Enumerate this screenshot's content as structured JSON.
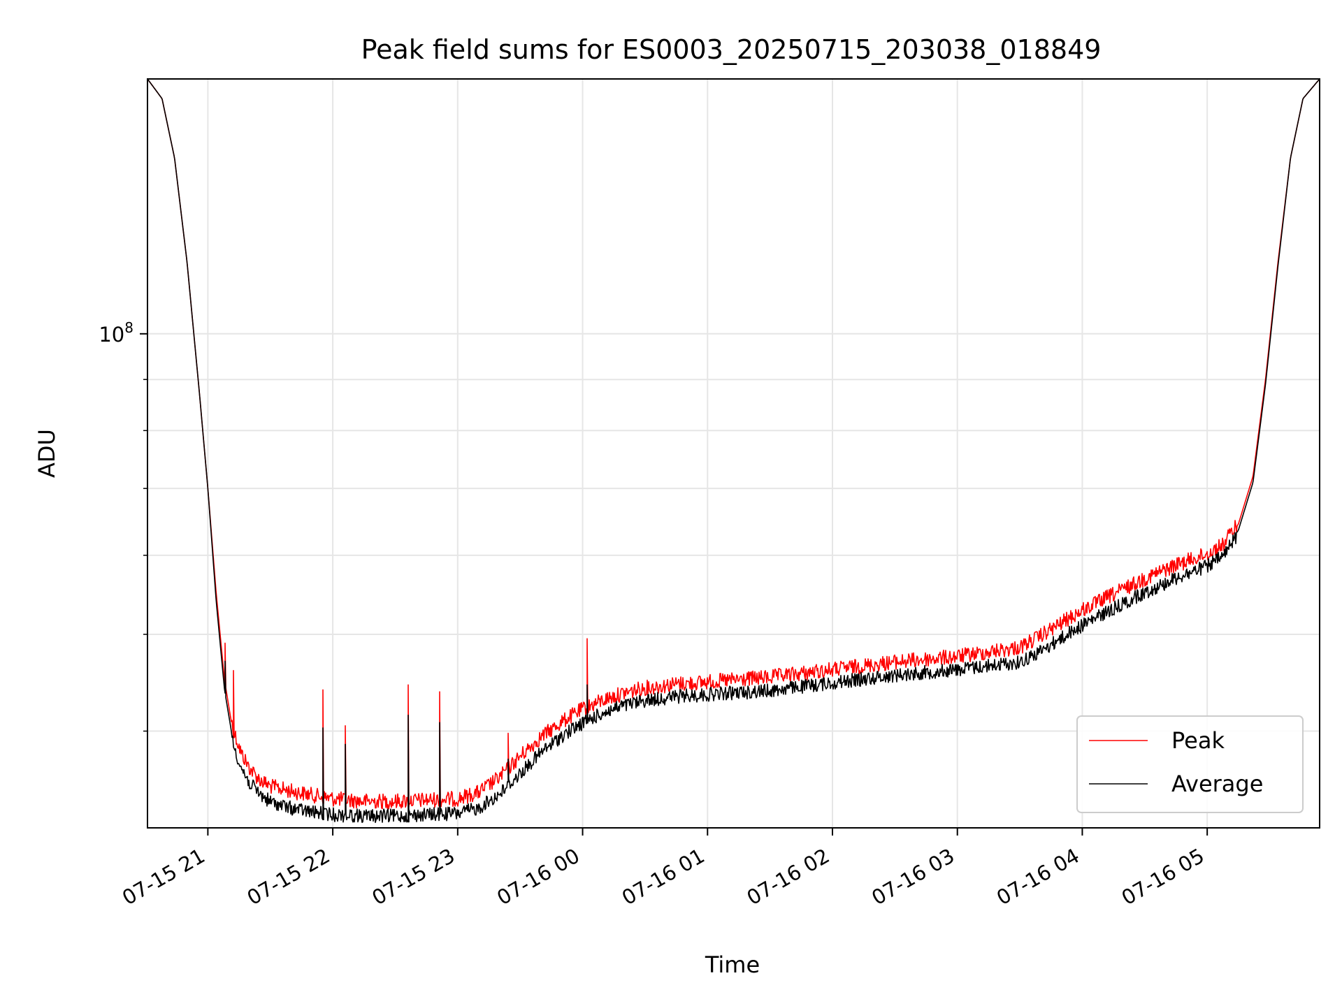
{
  "chart_data": {
    "type": "line",
    "title": "Peak field sums for ES0003_20250715_203038_018849",
    "xlabel": "Time",
    "ylabel": "ADU",
    "y_scale": "log",
    "ylim": [
      32000000,
      180000000
    ],
    "x_range": [
      "07-15 20:31",
      "07-16 05:54"
    ],
    "y_ticks": [
      {
        "value": 100000000,
        "base": "10",
        "exponent": "8"
      }
    ],
    "y_minor_ticks": [
      40000000,
      50000000,
      60000000,
      70000000,
      80000000,
      90000000,
      200000000
    ],
    "x_ticks": [
      {
        "time": "07-15 21:00",
        "label": "07-15 21"
      },
      {
        "time": "07-15 22:00",
        "label": "07-15 22"
      },
      {
        "time": "07-15 23:00",
        "label": "07-15 23"
      },
      {
        "time": "07-16 00:00",
        "label": "07-16 00"
      },
      {
        "time": "07-16 01:00",
        "label": "07-16 01"
      },
      {
        "time": "07-16 02:00",
        "label": "07-16 02"
      },
      {
        "time": "07-16 03:00",
        "label": "07-16 03"
      },
      {
        "time": "07-16 04:00",
        "label": "07-16 04"
      },
      {
        "time": "07-16 05:00",
        "label": "07-16 05"
      }
    ],
    "grid": true,
    "legend_position": "bottom-right",
    "series": [
      {
        "name": "Peak",
        "color": "#ff0000",
        "points": [
          [
            "07-15 20:31",
            180000000
          ],
          [
            "07-15 20:38",
            172000000
          ],
          [
            "07-15 20:44",
            150000000
          ],
          [
            "07-15 20:50",
            118000000
          ],
          [
            "07-15 20:56",
            87000000
          ],
          [
            "07-15 21:00",
            70000000
          ],
          [
            "07-15 21:04",
            55000000
          ],
          [
            "07-15 21:08",
            45000000
          ],
          [
            "07-15 21:12",
            40000000
          ],
          [
            "07-15 21:16",
            37800000
          ],
          [
            "07-15 21:20",
            36500000
          ],
          [
            "07-15 21:25",
            35500000
          ],
          [
            "07-15 21:30",
            35000000
          ],
          [
            "07-15 21:40",
            34600000
          ],
          [
            "07-15 21:50",
            34300000
          ],
          [
            "07-15 22:00",
            34000000
          ],
          [
            "07-15 22:15",
            33800000
          ],
          [
            "07-15 22:30",
            33800000
          ],
          [
            "07-15 22:45",
            33900000
          ],
          [
            "07-15 23:00",
            34000000
          ],
          [
            "07-15 23:10",
            34500000
          ],
          [
            "07-15 23:20",
            35700000
          ],
          [
            "07-15 23:30",
            37500000
          ],
          [
            "07-15 23:40",
            39200000
          ],
          [
            "07-15 23:50",
            40600000
          ],
          [
            "07-16 00:00",
            41800000
          ],
          [
            "07-16 00:10",
            42700000
          ],
          [
            "07-16 00:20",
            43400000
          ],
          [
            "07-16 00:30",
            43900000
          ],
          [
            "07-16 00:45",
            44300000
          ],
          [
            "07-16 01:00",
            44500000
          ],
          [
            "07-16 01:30",
            45000000
          ],
          [
            "07-16 02:00",
            45800000
          ],
          [
            "07-16 02:30",
            46600000
          ],
          [
            "07-16 03:00",
            47200000
          ],
          [
            "07-16 03:15",
            47700000
          ],
          [
            "07-16 03:30",
            48200000
          ],
          [
            "07-16 03:40",
            49500000
          ],
          [
            "07-16 03:50",
            51000000
          ],
          [
            "07-16 04:00",
            52500000
          ],
          [
            "07-16 04:15",
            54500000
          ],
          [
            "07-16 04:30",
            56500000
          ],
          [
            "07-16 04:45",
            58300000
          ],
          [
            "07-16 05:00",
            59800000
          ],
          [
            "07-16 05:08",
            61200000
          ],
          [
            "07-16 05:15",
            64500000
          ],
          [
            "07-16 05:22",
            72000000
          ],
          [
            "07-16 05:28",
            90000000
          ],
          [
            "07-16 05:34",
            118000000
          ],
          [
            "07-16 05:40",
            150000000
          ],
          [
            "07-16 05:46",
            172000000
          ],
          [
            "07-16 05:54",
            180000000
          ]
        ],
        "spikes": [
          [
            "07-15 21:08",
            49000000
          ],
          [
            "07-15 21:12",
            46000000
          ],
          [
            "07-15 21:55",
            44000000
          ],
          [
            "07-15 22:06",
            40500000
          ],
          [
            "07-15 22:36",
            44500000
          ],
          [
            "07-15 22:51",
            43800000
          ],
          [
            "07-15 23:24",
            39800000
          ],
          [
            "07-16 00:02",
            49500000
          ]
        ]
      },
      {
        "name": "Average",
        "color": "#000000",
        "points": [
          [
            "07-15 20:31",
            180000000
          ],
          [
            "07-15 20:38",
            172000000
          ],
          [
            "07-15 20:44",
            150000000
          ],
          [
            "07-15 20:50",
            118000000
          ],
          [
            "07-15 20:56",
            87000000
          ],
          [
            "07-15 21:00",
            70000000
          ],
          [
            "07-15 21:04",
            54000000
          ],
          [
            "07-15 21:08",
            44000000
          ],
          [
            "07-15 21:12",
            39200000
          ],
          [
            "07-15 21:16",
            37000000
          ],
          [
            "07-15 21:20",
            35700000
          ],
          [
            "07-15 21:25",
            34800000
          ],
          [
            "07-15 21:30",
            34200000
          ],
          [
            "07-15 21:40",
            33700000
          ],
          [
            "07-15 21:50",
            33400000
          ],
          [
            "07-15 22:00",
            33200000
          ],
          [
            "07-15 22:15",
            33100000
          ],
          [
            "07-15 22:30",
            33100000
          ],
          [
            "07-15 22:45",
            33200000
          ],
          [
            "07-15 23:00",
            33300000
          ],
          [
            "07-15 23:10",
            33700000
          ],
          [
            "07-15 23:20",
            34800000
          ],
          [
            "07-15 23:30",
            36500000
          ],
          [
            "07-15 23:40",
            38300000
          ],
          [
            "07-15 23:50",
            39800000
          ],
          [
            "07-16 00:00",
            41000000
          ],
          [
            "07-16 00:10",
            42000000
          ],
          [
            "07-16 00:20",
            42700000
          ],
          [
            "07-16 00:30",
            43200000
          ],
          [
            "07-16 00:45",
            43600000
          ],
          [
            "07-16 01:00",
            43800000
          ],
          [
            "07-16 01:30",
            44200000
          ],
          [
            "07-16 02:00",
            45000000
          ],
          [
            "07-16 02:30",
            45800000
          ],
          [
            "07-16 03:00",
            46400000
          ],
          [
            "07-16 03:15",
            46800000
          ],
          [
            "07-16 03:30",
            47200000
          ],
          [
            "07-16 03:40",
            48400000
          ],
          [
            "07-16 03:50",
            49900000
          ],
          [
            "07-16 04:00",
            51400000
          ],
          [
            "07-16 04:15",
            53400000
          ],
          [
            "07-16 04:30",
            55400000
          ],
          [
            "07-16 04:45",
            57300000
          ],
          [
            "07-16 05:00",
            58900000
          ],
          [
            "07-16 05:08",
            60300000
          ],
          [
            "07-16 05:15",
            63600000
          ],
          [
            "07-16 05:22",
            71000000
          ],
          [
            "07-16 05:28",
            89000000
          ],
          [
            "07-16 05:34",
            117000000
          ],
          [
            "07-16 05:40",
            150000000
          ],
          [
            "07-16 05:46",
            172000000
          ],
          [
            "07-16 05:54",
            180000000
          ]
        ],
        "spikes": [
          [
            "07-15 21:08",
            47000000
          ],
          [
            "07-15 21:55",
            40300000
          ],
          [
            "07-15 22:06",
            38800000
          ],
          [
            "07-15 22:36",
            41500000
          ],
          [
            "07-15 22:51",
            40800000
          ],
          [
            "07-15 23:24",
            37500000
          ],
          [
            "07-16 00:02",
            44500000
          ]
        ]
      }
    ]
  }
}
